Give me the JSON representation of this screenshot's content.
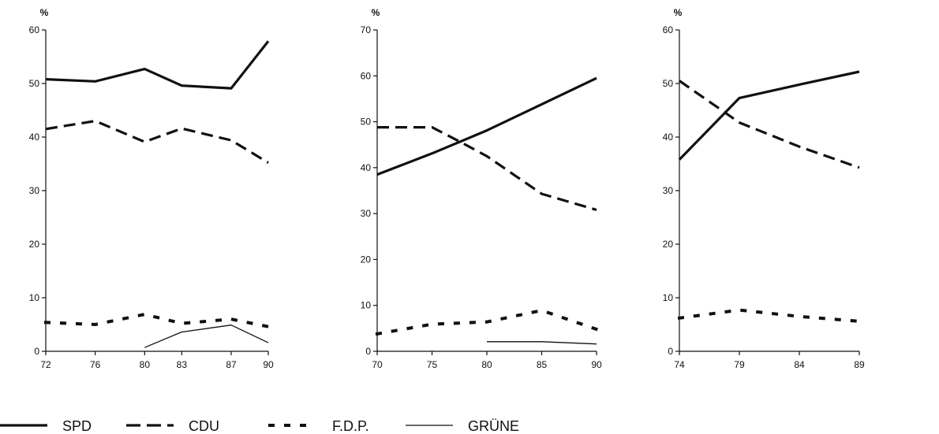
{
  "colors": {
    "ink": "#111111",
    "background": "#ffffff"
  },
  "legend": [
    {
      "name": "SPD",
      "style": "thick-solid"
    },
    {
      "name": "CDU",
      "style": "thick-dashed"
    },
    {
      "name": "F.D.P.",
      "style": "dotted"
    },
    {
      "name": "GRÜNE",
      "style": "thin-solid"
    }
  ],
  "chart_data": [
    {
      "type": "line",
      "unit_label": "%",
      "x_ticks": [
        "72",
        "76",
        "80",
        "83",
        "87",
        "90"
      ],
      "y_ticks": [
        "0",
        "10",
        "20",
        "30",
        "40",
        "50",
        "60"
      ],
      "xlim": [
        72,
        90
      ],
      "ylim": [
        0,
        60
      ],
      "grid": false,
      "series": [
        {
          "name": "SPD",
          "style": "thick-solid",
          "points": [
            [
              72,
              50.8
            ],
            [
              76,
              50.4
            ],
            [
              80,
              52.7
            ],
            [
              83,
              49.6
            ],
            [
              87,
              49.1
            ],
            [
              90,
              57.9
            ]
          ]
        },
        {
          "name": "CDU",
          "style": "thick-dashed",
          "points": [
            [
              72,
              41.5
            ],
            [
              76,
              43.0
            ],
            [
              80,
              39.1
            ],
            [
              83,
              41.6
            ],
            [
              87,
              39.4
            ],
            [
              90,
              35.2
            ]
          ]
        },
        {
          "name": "F.D.P.",
          "style": "dotted",
          "points": [
            [
              72,
              5.4
            ],
            [
              76,
              5.0
            ],
            [
              80,
              6.9
            ],
            [
              83,
              5.2
            ],
            [
              87,
              6.0
            ],
            [
              90,
              4.6
            ]
          ]
        },
        {
          "name": "GRÜNE",
          "style": "thin-solid",
          "points": [
            [
              80,
              0.7
            ],
            [
              83,
              3.6
            ],
            [
              87,
              4.9
            ],
            [
              90,
              1.6
            ]
          ]
        }
      ]
    },
    {
      "type": "line",
      "unit_label": "%",
      "x_ticks": [
        "70",
        "75",
        "80",
        "85",
        "90"
      ],
      "y_ticks": [
        "0",
        "10",
        "20",
        "30",
        "40",
        "50",
        "60",
        "70"
      ],
      "xlim": [
        70,
        90
      ],
      "ylim": [
        0,
        70
      ],
      "grid": false,
      "series": [
        {
          "name": "SPD",
          "style": "thick-solid",
          "points": [
            [
              70,
              38.5
            ],
            [
              75,
              43.1
            ],
            [
              80,
              48.1
            ],
            [
              85,
              53.8
            ],
            [
              90,
              59.5
            ]
          ]
        },
        {
          "name": "CDU",
          "style": "thick-dashed",
          "points": [
            [
              70,
              48.8
            ],
            [
              75,
              48.8
            ],
            [
              77.5,
              45.7
            ],
            [
              80,
              42.5
            ],
            [
              85,
              34.3
            ],
            [
              90,
              30.8
            ]
          ]
        },
        {
          "name": "F.D.P.",
          "style": "dotted",
          "points": [
            [
              70,
              3.8
            ],
            [
              75,
              5.9
            ],
            [
              80,
              6.4
            ],
            [
              85,
              8.9
            ],
            [
              90,
              4.8
            ]
          ]
        },
        {
          "name": "GRÜNE",
          "style": "thin-solid",
          "points": [
            [
              80,
              2.1
            ],
            [
              85,
              2.1
            ],
            [
              90,
              1.6
            ]
          ]
        }
      ]
    },
    {
      "type": "line",
      "unit_label": "%",
      "x_ticks": [
        "74",
        "79",
        "84",
        "89"
      ],
      "y_ticks": [
        "0",
        "10",
        "20",
        "30",
        "40",
        "50",
        "60"
      ],
      "xlim": [
        74,
        89
      ],
      "ylim": [
        0,
        60
      ],
      "grid": false,
      "series": [
        {
          "name": "SPD",
          "style": "thick-solid",
          "points": [
            [
              74,
              35.8
            ],
            [
              79,
              47.3
            ],
            [
              84,
              49.8
            ],
            [
              89,
              52.2
            ]
          ]
        },
        {
          "name": "CDU",
          "style": "thick-dashed",
          "points": [
            [
              74,
              50.5
            ],
            [
              79,
              42.7
            ],
            [
              84,
              38.2
            ],
            [
              89,
              34.3
            ]
          ]
        },
        {
          "name": "F.D.P.",
          "style": "dotted",
          "points": [
            [
              74,
              6.2
            ],
            [
              79,
              7.7
            ],
            [
              84,
              6.5
            ],
            [
              89,
              5.6
            ]
          ]
        }
      ]
    }
  ]
}
